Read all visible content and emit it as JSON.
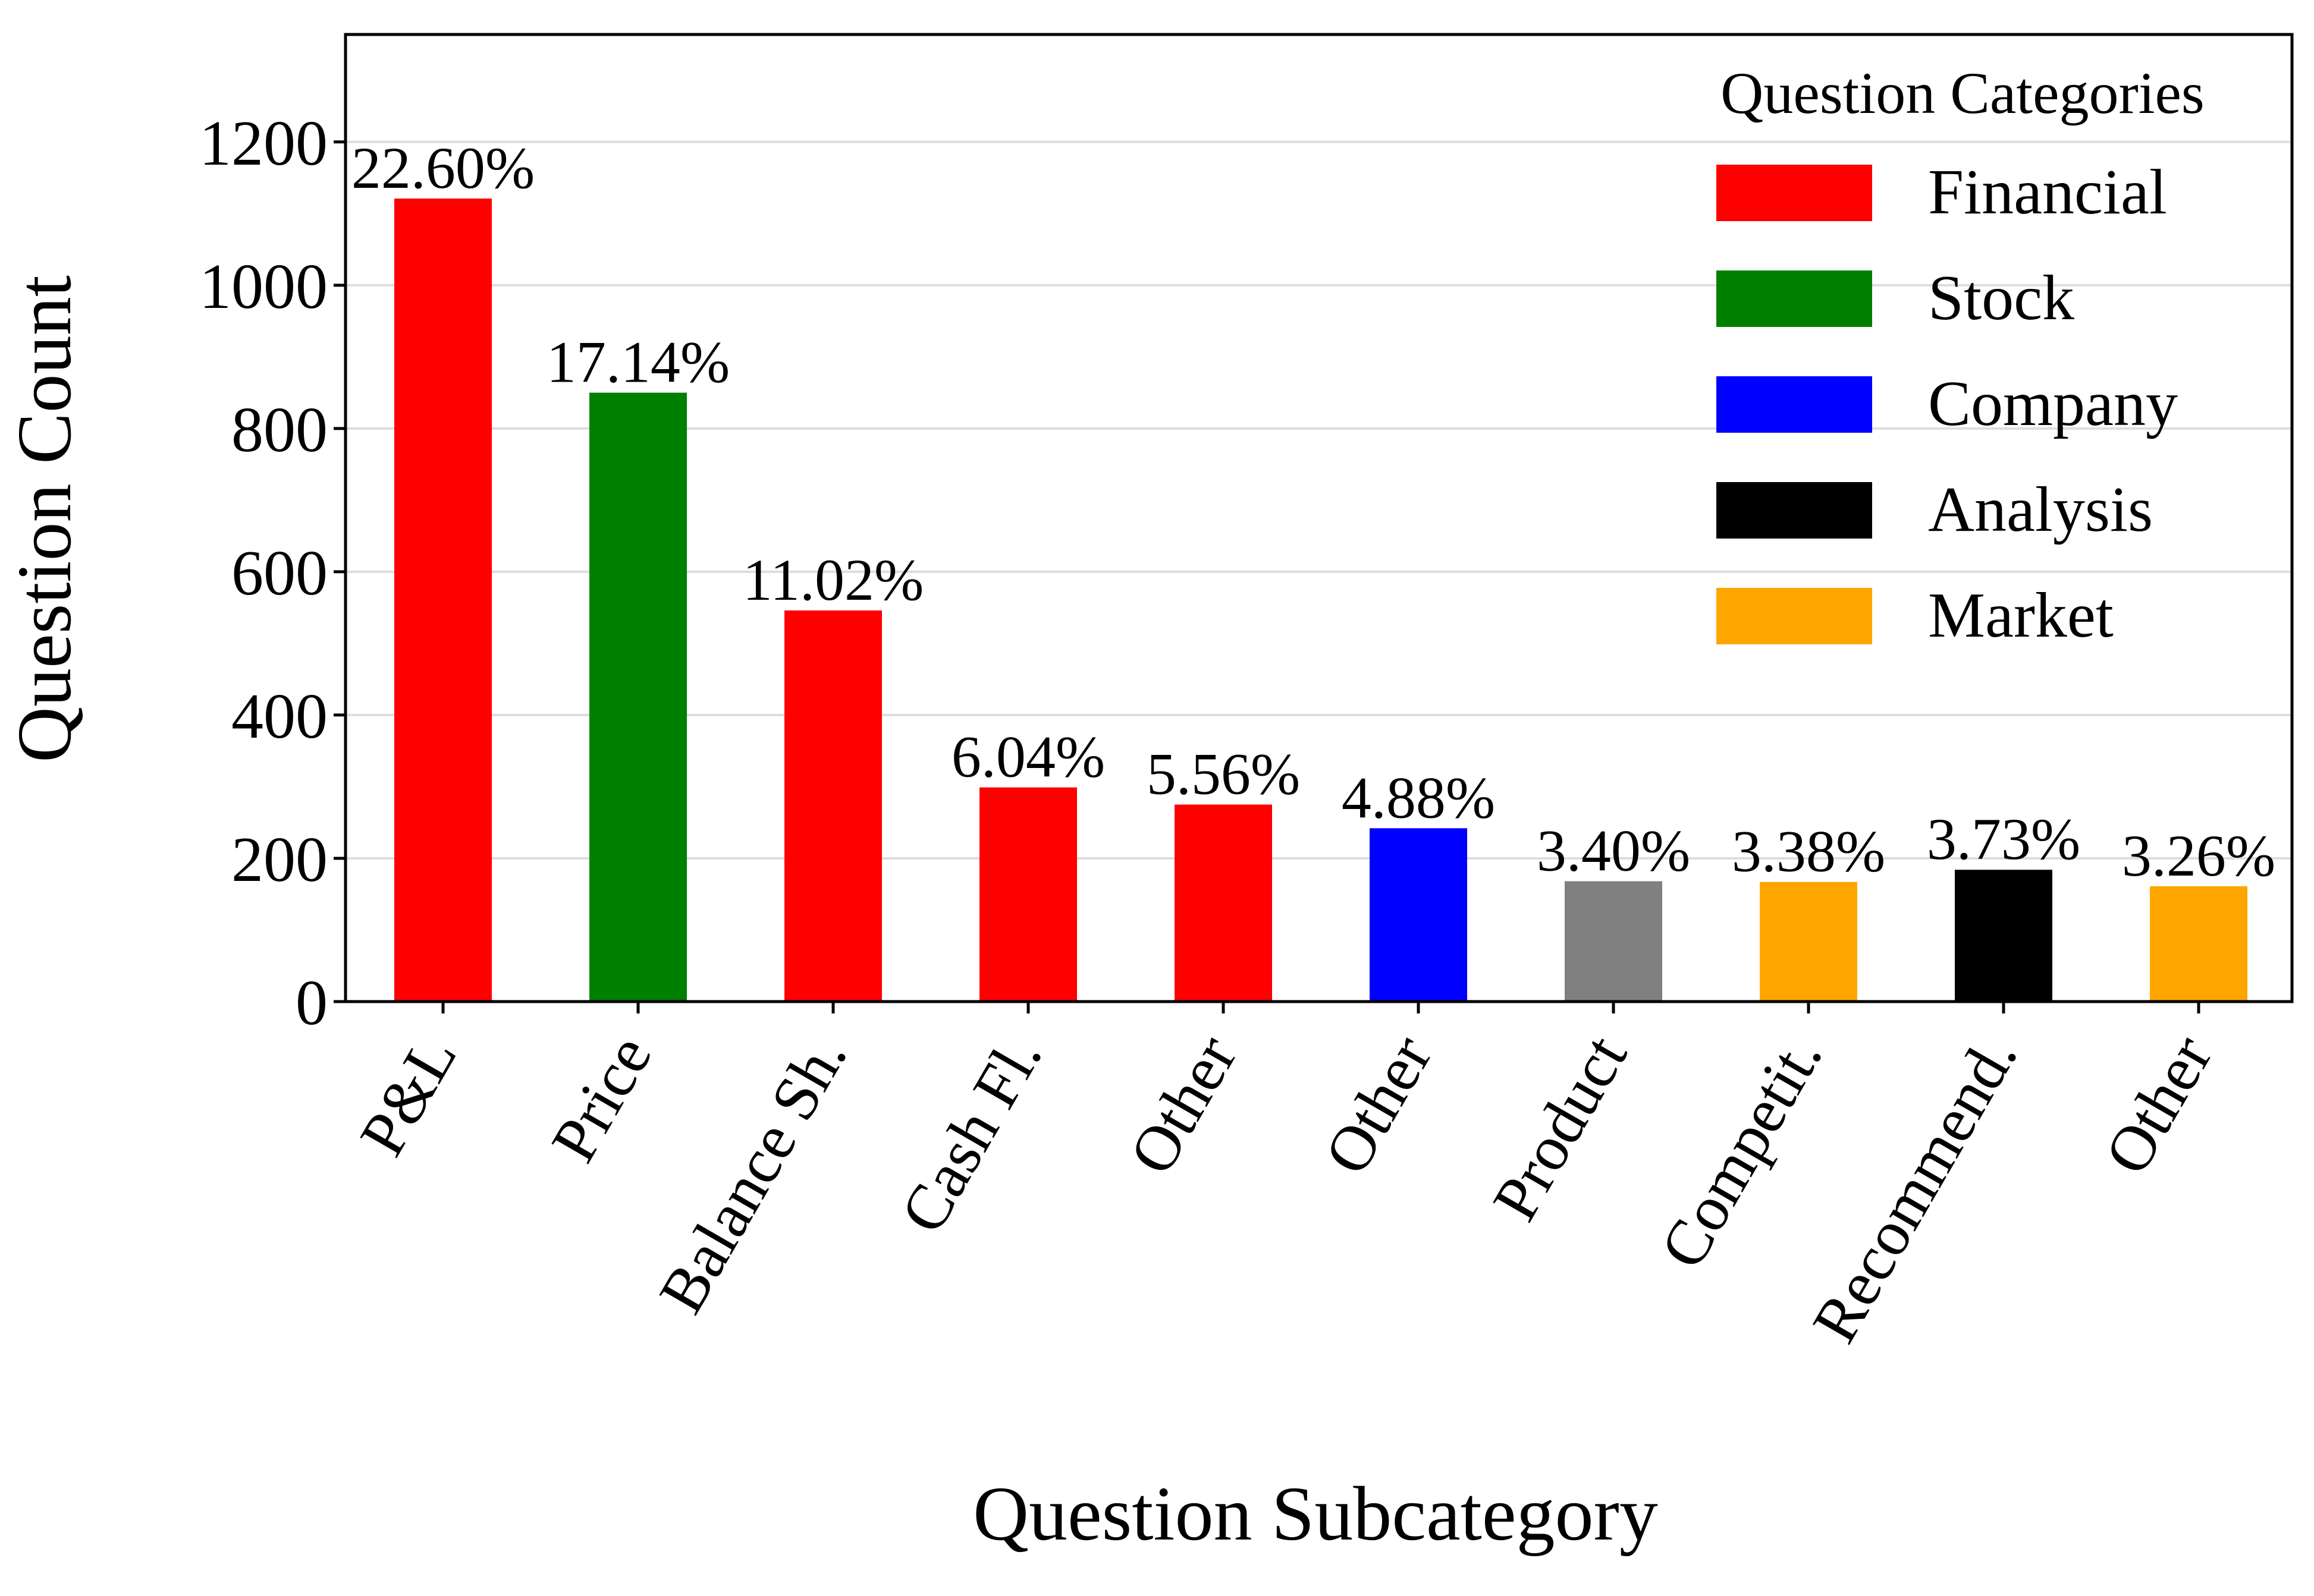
{
  "chart_data": {
    "type": "bar",
    "xlabel": "Question Subcategory",
    "ylabel": "Question Count",
    "ylim": [
      0,
      1350
    ],
    "yticks": [
      0,
      200,
      400,
      600,
      800,
      1000,
      1200
    ],
    "grid": "y",
    "categories": [
      "P&L",
      "Price",
      "Balance Sh.",
      "Cash Fl.",
      "Other",
      "Other",
      "Product",
      "Competit.",
      "Recommend.",
      "Other"
    ],
    "values": [
      1121,
      850,
      546,
      299,
      275,
      242,
      168,
      167,
      184,
      161
    ],
    "labels": [
      "22.60%",
      "17.14%",
      "11.02%",
      "6.04%",
      "5.56%",
      "4.88%",
      "3.40%",
      "3.38%",
      "3.73%",
      "3.26%"
    ],
    "bar_colors": [
      "#ff0000",
      "#008000",
      "#ff0000",
      "#ff0000",
      "#ff0000",
      "#0000ff",
      "#808080",
      "#ffa500",
      "#000000",
      "#ffa500"
    ],
    "legend": {
      "title": "Question Categories",
      "placement": "top-right",
      "items": [
        {
          "label": "Financial",
          "color": "#ff0000"
        },
        {
          "label": "Stock",
          "color": "#008000"
        },
        {
          "label": "Company",
          "color": "#0000ff"
        },
        {
          "label": "Analysis",
          "color": "#000000"
        },
        {
          "label": "Market",
          "color": "#ffa500"
        }
      ]
    }
  }
}
